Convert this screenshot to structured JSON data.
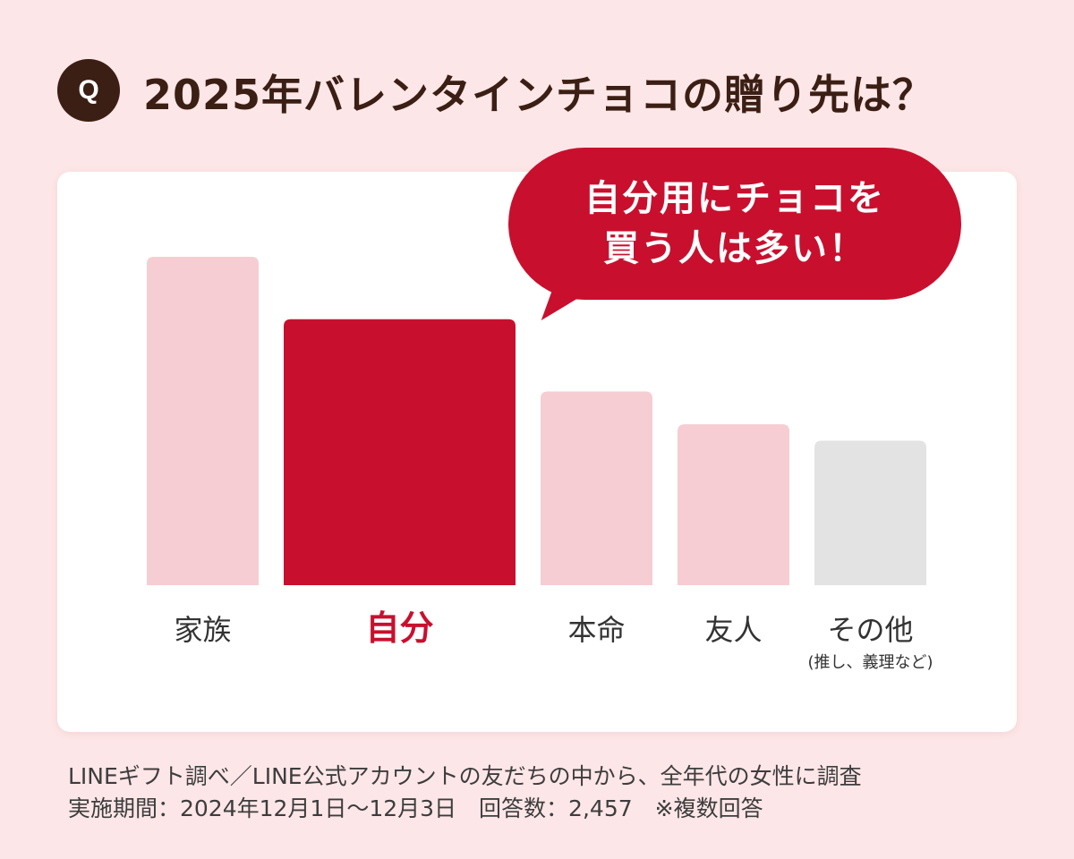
{
  "badge": "Q",
  "title": "2025年バレンタインチョコの贈り先は？",
  "callout": {
    "line1": "自分用にチョコを",
    "line2": "買う人は多い！"
  },
  "colors": {
    "highlight": "#c8102e",
    "normal": "#f6cdd2",
    "other": "#e3e3e3",
    "text": "#333333"
  },
  "chart_data": {
    "type": "bar",
    "categories": [
      "家族",
      "自分",
      "本命",
      "友人",
      "その他"
    ],
    "category_notes": [
      "",
      "",
      "",
      "",
      "(推し、義理など)"
    ],
    "values": [
      100,
      81,
      59,
      49,
      44
    ],
    "highlight_index": 1,
    "value_units": "relative (no axis shown)"
  },
  "footer": {
    "line1": "LINEギフト調べ／LINE公式アカウントの友だちの中から、全年代の女性に調査",
    "line2": "実施期間：2024年12月1日〜12月3日　回答数：2,457　※複数回答"
  }
}
